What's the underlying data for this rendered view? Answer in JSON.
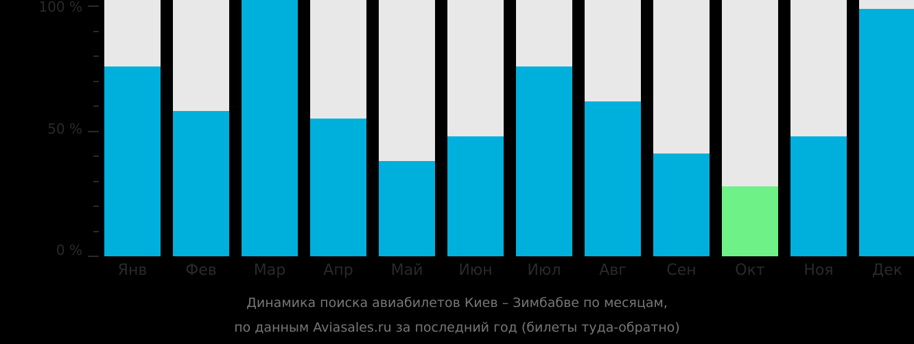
{
  "chart_data": {
    "type": "bar",
    "title": "Динамика поиска авиабилетов Киев – Зимбабве по месяцам, по данным Aviasales.ru за последний год (билеты туда-обратно)",
    "xlabel": "",
    "ylabel": "",
    "ylim": [
      0,
      100
    ],
    "y_ticks": [
      "0 %",
      "50 %",
      "100 %"
    ],
    "categories": [
      "Янв",
      "Фев",
      "Мар",
      "Апр",
      "Май",
      "Июн",
      "Июл",
      "Авг",
      "Сен",
      "Окт",
      "Ноя",
      "Дек"
    ],
    "values": [
      76,
      58,
      100,
      55,
      38,
      48,
      76,
      62,
      41,
      28,
      48,
      99
    ],
    "highlight_index": 9,
    "colors": {
      "bar": "#00b0dc",
      "highlight": "#6ef287",
      "background_bar": "#e8e8e8",
      "background": "#000000",
      "text": "#2a2a2a"
    },
    "grid": false,
    "legend": null
  },
  "axis": {
    "y100": "100 %",
    "y50": "50 %",
    "y0": "0 %"
  },
  "caption": {
    "line1": "Динамика поиска авиабилетов Киев – Зимбабве по месяцам,",
    "line2": "по данным Aviasales.ru за последний год (билеты туда-обратно)"
  }
}
